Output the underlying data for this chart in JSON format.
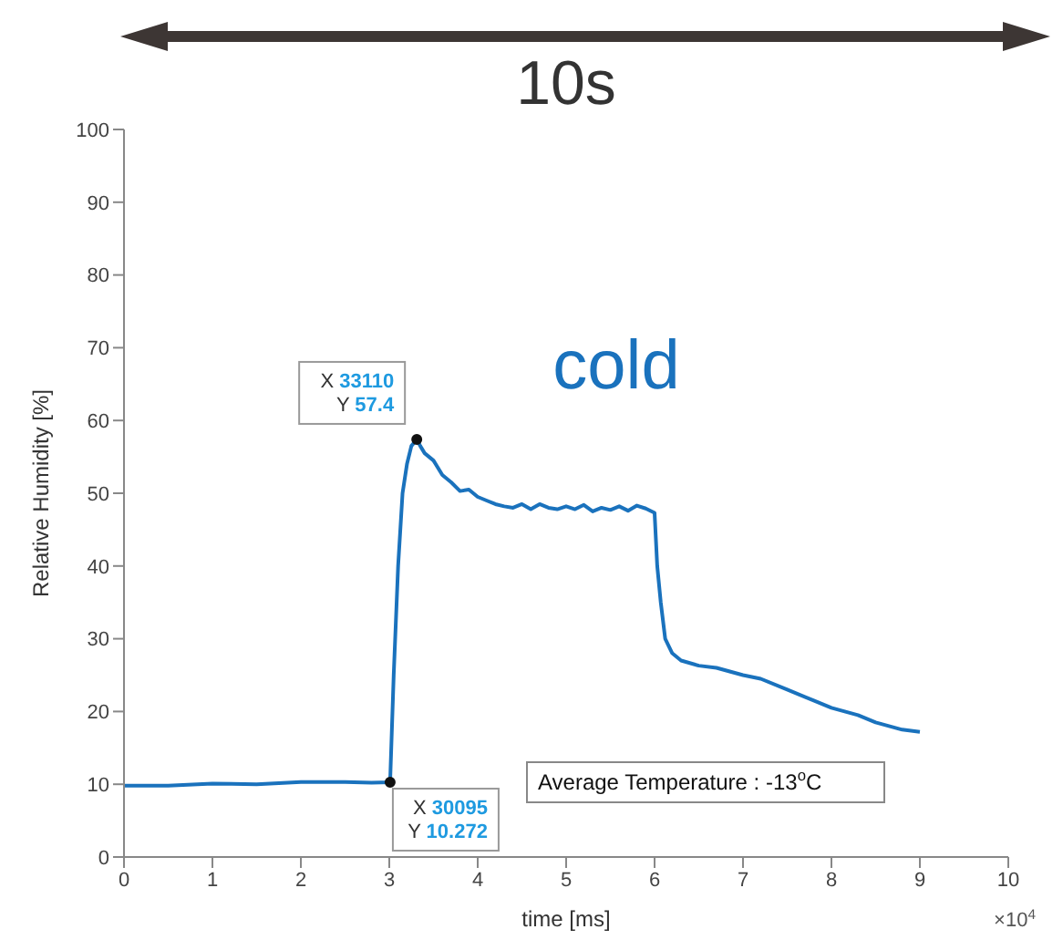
{
  "chart_data": {
    "type": "line",
    "title": "10s",
    "xlabel": "time [ms]",
    "ylabel": "Relative Humidity [%]",
    "annotations": [
      "cold",
      "Average Temperature : -13$^{o}$C",
      "×10$^{4}$",
      {
        "text": "X 33110\nY 57.4",
        "x": 3.311,
        "y": 57.4
      },
      {
        "text": "X 30095\nY 10.272",
        "x": 3.0095,
        "y": 10.272
      }
    ],
    "x": [
      0,
      0.5,
      1,
      1.5,
      2,
      2.5,
      2.8,
      3.0095,
      3.05,
      3.1,
      3.15,
      3.2,
      3.25,
      3.311,
      3.35,
      3.4,
      3.5,
      3.6,
      3.7,
      3.8,
      3.9,
      4,
      4.1,
      4.2,
      4.3,
      4.4,
      4.5,
      4.6,
      4.7,
      4.8,
      4.9,
      5,
      5.1,
      5.2,
      5.3,
      5.4,
      5.5,
      5.6,
      5.7,
      5.8,
      5.9,
      6,
      6.03,
      6.07,
      6.12,
      6.2,
      6.3,
      6.5,
      6.7,
      7,
      7.2,
      7.5,
      7.8,
      8,
      8.3,
      8.5,
      8.8,
      9
    ],
    "series": [
      {
        "color": "#1a72bd",
        "values": [
          9.8,
          9.8,
          10.1,
          10.0,
          10.3,
          10.3,
          10.2,
          10.272,
          25,
          40,
          50,
          54,
          56.5,
          57.4,
          56.5,
          55.5,
          54.5,
          52.5,
          51.5,
          50.3,
          50.5,
          49.5,
          49,
          48.5,
          48.2,
          48.0,
          48.5,
          47.8,
          48.5,
          48.0,
          47.8,
          48.2,
          47.8,
          48.4,
          47.5,
          48.0,
          47.7,
          48.2,
          47.6,
          48.3,
          47.9,
          47.3,
          40,
          35,
          30,
          28,
          27,
          26.3,
          26,
          25,
          24.5,
          23,
          21.5,
          20.5,
          19.5,
          18.5,
          17.5,
          17.2
        ]
      }
    ],
    "xlim": [
      0,
      10
    ],
    "xticks": [
      0,
      1,
      2,
      3,
      4,
      5,
      6,
      7,
      8,
      9,
      10
    ],
    "ylim": [
      0,
      100
    ],
    "yticks": [
      0,
      10,
      20,
      30,
      40,
      50,
      60,
      70,
      80,
      90,
      100
    ],
    "grid": false,
    "legend": false,
    "marker": "none",
    "line_style": "solid"
  }
}
